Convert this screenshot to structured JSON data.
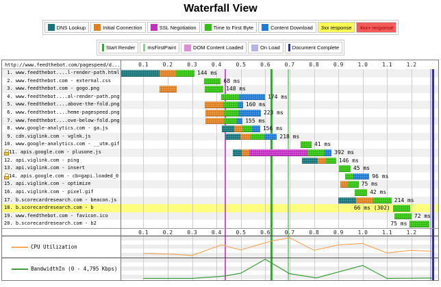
{
  "title": "Waterfall View",
  "colors": {
    "dns": "#16757b",
    "connection": "#e0801f",
    "ssl": "#c32ec3",
    "ttfb": "#2fc10c",
    "download": "#1f7ad4",
    "status_3xx_bg": "#ffff55",
    "status_4xx_bg": "#f25b5b",
    "status_4xx_fg": "#a00000",
    "highlight_3xx_row": "#ffff7d",
    "dom_content_loaded": "#d24ed2",
    "dom_content_loaded_chip": "#db8fdb",
    "start_render": "#28b228",
    "ms_first_paint": "#8fd08f",
    "on_load": "#b4b4e6",
    "document_complete": "#2b2bc8",
    "cpu_line": "#f2a860",
    "bandwidth_line": "#3d9c3d",
    "grid": "#cccccc",
    "row_stripe": "#f0f0f0"
  },
  "legend_phases": [
    {
      "label": "DNS Lookup",
      "chip": "square",
      "color_key": "dns"
    },
    {
      "label": "Initial Connection",
      "chip": "square",
      "color_key": "connection"
    },
    {
      "label": "SSL Negotiation",
      "chip": "square",
      "color_key": "ssl"
    },
    {
      "label": "Time to First Byte",
      "chip": "square",
      "color_key": "ttfb"
    },
    {
      "label": "Content Download",
      "chip": "square",
      "color_key": "download"
    },
    {
      "label": "3xx response",
      "chip": "cell",
      "bg_key": "status_3xx_bg",
      "fg": "#000000"
    },
    {
      "label": "4xx+ response",
      "chip": "cell",
      "bg_key": "status_4xx_bg",
      "fg_key": "status_4xx_fg"
    }
  ],
  "legend_events": [
    {
      "label": "Start Render",
      "chip": "vline",
      "color_key": "start_render"
    },
    {
      "label": "msFirstPaint",
      "chip": "vline",
      "color_key": "ms_first_paint"
    },
    {
      "label": "DOM Content Loaded",
      "chip": "square",
      "color_key": "dom_content_loaded_chip"
    },
    {
      "label": "On Load",
      "chip": "square",
      "color_key": "on_load"
    },
    {
      "label": "Document Complete",
      "chip": "vline",
      "color_key": "document_complete"
    }
  ],
  "chart_data": [
    {
      "type": "waterfall",
      "title": "Waterfall View",
      "url_header": "http://www.feedthebot.com/pagespeed/d...",
      "x_unit": "seconds",
      "x_ticks_s": [
        0.1,
        0.2,
        0.3,
        0.4,
        0.5,
        0.6,
        0.7,
        0.8,
        0.9,
        1.0,
        1.1,
        1.2
      ],
      "x_max_s": 1.3,
      "event_lines": [
        {
          "name": "dom_content_loaded",
          "time_s": 0.433
        },
        {
          "name": "start_render",
          "time_s": 0.622
        },
        {
          "name": "ms_first_paint",
          "time_s": 0.692
        },
        {
          "name": "on_load",
          "time_s": 1.276
        },
        {
          "name": "document_complete",
          "time_s": 1.284
        }
      ],
      "rows": [
        {
          "index": 1,
          "secure": false,
          "url": "www.feedthebot....l-render-path.html",
          "time_label": "144 ms",
          "label_position": "after",
          "highlight_3xx": false,
          "segments": [
            [
              "dns",
              6,
              166
            ],
            [
              "connection",
              166,
              234
            ],
            [
              "ttfb",
              234,
              310
            ]
          ]
        },
        {
          "index": 2,
          "secure": false,
          "url": "www.feedthebot.com - external.css",
          "time_label": "68 ms",
          "label_position": "after",
          "highlight_3xx": false,
          "segments": [
            [
              "ttfb",
              348,
              418
            ]
          ]
        },
        {
          "index": 3,
          "secure": false,
          "url": "www.feedthebot.com - gogo.png",
          "time_label": "148 ms",
          "label_position": "after",
          "highlight_3xx": false,
          "segments": [
            [
              "connection",
              166,
              237
            ],
            [
              "ttfb",
              351,
              428
            ]
          ]
        },
        {
          "index": 4,
          "secure": false,
          "url": "www.feedthebot....al-render-path.png",
          "time_label": "174 ms",
          "label_position": "after",
          "highlight_3xx": false,
          "segments": [
            [
              "ttfb",
              418,
              493
            ],
            [
              "download",
              493,
              599
            ]
          ]
        },
        {
          "index": 5,
          "secure": false,
          "url": "www.feedthebot....above-the-fold.png",
          "time_label": "160 ms",
          "label_position": "after",
          "highlight_3xx": false,
          "segments": [
            [
              "connection",
              353,
              428
            ],
            [
              "ttfb",
              428,
              489
            ],
            [
              "download",
              489,
              509
            ]
          ]
        },
        {
          "index": 6,
          "secure": false,
          "url": "www.feedthebot....heme-pagespeed.png",
          "time_label": "223 ms",
          "label_position": "after",
          "highlight_3xx": false,
          "segments": [
            [
              "connection",
              355,
              430
            ],
            [
              "ttfb",
              430,
              493
            ],
            [
              "download",
              493,
              582
            ]
          ]
        },
        {
          "index": 7,
          "secure": false,
          "url": "www.feedthebot....ove-below-fold.png",
          "time_label": "155 ms",
          "label_position": "after",
          "highlight_3xx": false,
          "segments": [
            [
              "connection",
              355,
              430
            ],
            [
              "ttfb",
              430,
              485
            ],
            [
              "download",
              485,
              507
            ]
          ]
        },
        {
          "index": 8,
          "secure": false,
          "url": "www.google-analytics.com - ga.js",
          "time_label": "156 ms",
          "label_position": "after",
          "highlight_3xx": false,
          "segments": [
            [
              "dns",
              423,
              472
            ],
            [
              "connection",
              472,
              506
            ],
            [
              "ttfb",
              506,
              545
            ],
            [
              "download",
              545,
              579
            ]
          ]
        },
        {
          "index": 9,
          "secure": false,
          "url": "cdn.viglink.com - vglnk.js",
          "time_label": "218 ms",
          "label_position": "after",
          "highlight_3xx": false,
          "segments": [
            [
              "dns",
              435,
              498
            ],
            [
              "connection",
              498,
              540
            ],
            [
              "ttfb",
              540,
              596
            ],
            [
              "download",
              596,
              648
            ]
          ]
        },
        {
          "index": 10,
          "secure": false,
          "url": "www.google-analytics.com - __utm.gif",
          "time_label": "41 ms",
          "label_position": "after",
          "highlight_3xx": false,
          "segments": [
            [
              "ttfb",
              744,
              790
            ]
          ]
        },
        {
          "index": 11,
          "secure": true,
          "url": "apis.google.com - plusone.js",
          "time_label": "392 ms",
          "label_position": "after",
          "highlight_3xx": false,
          "segments": [
            [
              "dns",
              468,
              503
            ],
            [
              "connection",
              503,
              535
            ],
            [
              "ssl",
              535,
              774
            ],
            [
              "ttfb",
              774,
              843
            ],
            [
              "download",
              843,
              872
            ]
          ]
        },
        {
          "index": 12,
          "secure": false,
          "url": "api.viglink.com - ping",
          "time_label": "146 ms",
          "label_position": "after",
          "highlight_3xx": false,
          "segments": [
            [
              "dns",
              751,
              816
            ],
            [
              "connection",
              816,
              849
            ],
            [
              "ttfb",
              849,
              891
            ]
          ]
        },
        {
          "index": 13,
          "secure": false,
          "url": "api.viglink.com - insert",
          "time_label": "45 ms",
          "label_position": "after",
          "highlight_3xx": false,
          "segments": [
            [
              "ttfb",
              903,
              950
            ]
          ]
        },
        {
          "index": 14,
          "secure": true,
          "url": "apis.google.com - cb=gapi.loaded_0",
          "time_label": "96 ms",
          "label_position": "after",
          "highlight_3xx": false,
          "segments": [
            [
              "ttfb",
              929,
              961
            ],
            [
              "download",
              961,
              1027
            ]
          ]
        },
        {
          "index": 15,
          "secure": false,
          "url": "api.viglink.com - optimize",
          "time_label": "75 ms",
          "label_position": "after",
          "highlight_3xx": false,
          "segments": [
            [
              "connection",
              907,
              938
            ],
            [
              "ttfb",
              938,
              983
            ]
          ]
        },
        {
          "index": 16,
          "secure": false,
          "url": "api.viglink.com - pixel.gif",
          "time_label": "42 ms",
          "label_position": "after",
          "highlight_3xx": false,
          "segments": [
            [
              "ttfb",
              966,
              1018
            ]
          ]
        },
        {
          "index": 17,
          "secure": false,
          "url": "b.scorecardresearch.com - beacon.js",
          "time_label": "214 ms",
          "label_position": "after",
          "highlight_3xx": false,
          "segments": [
            [
              "dns",
              899,
              974
            ],
            [
              "connection",
              974,
              1043
            ],
            [
              "ttfb",
              1043,
              1118
            ]
          ]
        },
        {
          "index": 18,
          "secure": false,
          "url": "b.scorecardresearch.com - b",
          "time_label": "66 ms (302)",
          "label_position": "before",
          "highlight_3xx": true,
          "segments": [
            [
              "ttfb",
              1124,
              1195
            ]
          ]
        },
        {
          "index": 19,
          "secure": false,
          "url": "www.feedthebot.com - favicon.ico",
          "time_label": "72 ms",
          "label_position": "after",
          "highlight_3xx": false,
          "segments": [
            [
              "ttfb",
              1130,
              1200
            ]
          ]
        },
        {
          "index": 20,
          "secure": false,
          "url": "b.scorecardresearch.com - b2",
          "time_label": "75 ms",
          "label_position": "before",
          "highlight_3xx": false,
          "segments": [
            [
              "ttfb",
              1193,
              1273
            ]
          ]
        }
      ]
    },
    {
      "type": "line",
      "name": "CPU Utilization",
      "unit": "percent",
      "y_range": [
        0,
        100
      ],
      "x_s": [
        0.1,
        0.22,
        0.3,
        0.42,
        0.5,
        0.62,
        0.7,
        0.8,
        0.9,
        1.0,
        1.1,
        1.2,
        1.285
      ],
      "y": [
        13,
        9,
        2,
        59,
        32,
        78,
        98,
        30,
        59,
        67,
        15,
        30,
        24
      ]
    },
    {
      "type": "line",
      "name": "BandwidthIn (0 - 4,795 Kbps)",
      "unit": "Kbps",
      "y_range": [
        0,
        4795
      ],
      "x_s": [
        0.1,
        0.3,
        0.43,
        0.5,
        0.6,
        0.7,
        0.81,
        1.0,
        1.1,
        1.2,
        1.285
      ],
      "y": [
        0,
        0,
        575,
        1295,
        4795,
        1200,
        145,
        3260,
        0,
        50,
        100
      ]
    }
  ]
}
